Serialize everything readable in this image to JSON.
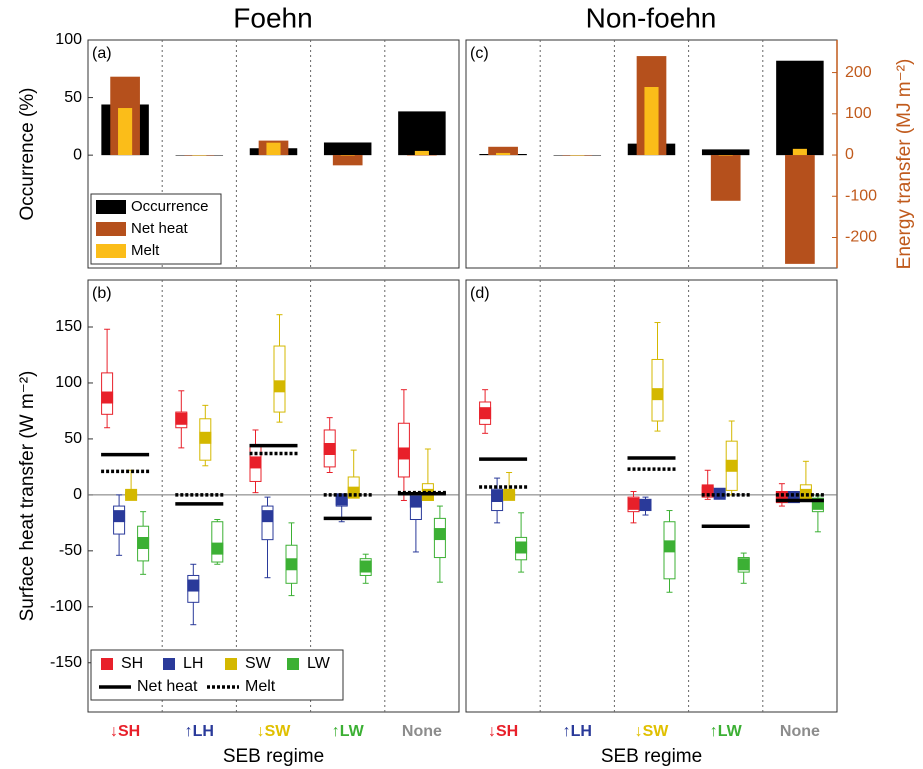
{
  "titles": [
    "Foehn",
    "Non-foehn"
  ],
  "chart_data": [
    {
      "type": "bar",
      "panel_label": "(a)",
      "y_label": "Occurrence (%)",
      "ylim": [
        -98,
        100
      ],
      "yticks": [
        0,
        50,
        100
      ],
      "y2lim": [
        -274,
        279
      ],
      "legend": "lower left",
      "series": [
        {
          "name": "Occurrence",
          "color": "#000000",
          "values": [
            44,
            0,
            6,
            11,
            38
          ]
        },
        {
          "name": "Net heat",
          "color": "#b5501c",
          "axis": "y2",
          "values": [
            190,
            0,
            35,
            -25,
            0
          ]
        },
        {
          "name": "Melt",
          "color": "#fbbd19",
          "axis": "y2",
          "values": [
            114,
            0,
            30,
            0,
            10
          ]
        }
      ]
    },
    {
      "type": "bar",
      "panel_label": "(c)",
      "y2_label": "Energy transfer (MJ m⁻²)",
      "axis_color": "#c05a1c",
      "ylim": [
        -98,
        100
      ],
      "y2lim": [
        -274,
        279
      ],
      "y2ticks": [
        -200,
        -100,
        0,
        100,
        200
      ],
      "series": [
        {
          "color": "#000000",
          "values": [
            1,
            0,
            10,
            5,
            82
          ]
        },
        {
          "color": "#b5501c",
          "axis": "y2",
          "values": [
            20,
            0,
            240,
            -111,
            -264
          ]
        },
        {
          "color": "#fbbd19",
          "axis": "y2",
          "values": [
            5,
            0,
            165,
            0,
            15
          ]
        }
      ]
    },
    {
      "type": "box",
      "panel_label": "(b)",
      "y_label": "Surface heat transfer (W m⁻²)",
      "x_label": "SEB regime",
      "categories": [
        "↓SH",
        "↑LH",
        "↓SW",
        "↑LW",
        "None"
      ],
      "category_colors": [
        "#e8202a",
        "#2a3a9a",
        "#e0c000",
        "#3cb034",
        "#8c8c8c"
      ],
      "ylim": [
        -194,
        192
      ],
      "yticks": [
        -150,
        -100,
        -50,
        0,
        50,
        100,
        150
      ],
      "legend": "lower left",
      "series": [
        {
          "name": "SH",
          "color": "#e8202a",
          "values": [
            [
              60,
              72,
              87,
              109,
              148
            ],
            [
              42,
              60,
              68,
              74,
              93
            ],
            [
              2,
              12,
              29,
              45,
              58
            ],
            [
              20,
              25,
              41,
              58,
              69
            ],
            [
              -5,
              16,
              37,
              64,
              94
            ]
          ]
        },
        {
          "name": "LH",
          "color": "#2a3a9a",
          "values": [
            [
              -54,
              -35,
              -19,
              -10,
              0
            ],
            [
              -116,
              -96,
              -81,
              -72,
              -62
            ],
            [
              -74,
              -40,
              -19,
              -10,
              -2
            ],
            [
              -24,
              -10,
              -4,
              0,
              0
            ],
            [
              -51,
              -22,
              -6,
              0,
              0
            ]
          ]
        },
        {
          "name": "SW",
          "color": "#d4b800",
          "values": [
            [
              -2,
              -2,
              0,
              2,
              22
            ],
            [
              26,
              31,
              51,
              68,
              80
            ],
            [
              65,
              74,
              97,
              133,
              161
            ],
            [
              -2,
              0,
              2,
              16,
              40
            ],
            [
              -5,
              -5,
              0,
              10,
              41
            ]
          ]
        },
        {
          "name": "LW",
          "color": "#3cb034",
          "values": [
            [
              -71,
              -59,
              -43,
              -28,
              -15
            ],
            [
              -62,
              -60,
              -48,
              -24,
              -22
            ],
            [
              -90,
              -79,
              -62,
              -45,
              -25
            ],
            [
              -79,
              -72,
              -64,
              -57,
              -53
            ],
            [
              -78,
              -56,
              -35,
              -21,
              -10
            ]
          ]
        },
        {
          "name": "Net heat",
          "color": "#000000",
          "style": "solid",
          "values": [
            36,
            -8,
            44,
            -21,
            1
          ]
        },
        {
          "name": "Melt",
          "color": "#000000",
          "style": "dotted",
          "values": [
            21,
            0,
            37,
            0,
            2
          ]
        }
      ]
    },
    {
      "type": "box",
      "panel_label": "(d)",
      "x_label": "SEB regime",
      "categories": [
        "↓SH",
        "↑LH",
        "↓SW",
        "↑LW",
        "None"
      ],
      "category_colors": [
        "#e8202a",
        "#2a3a9a",
        "#e0c000",
        "#3cb034",
        "#8c8c8c"
      ],
      "ylim": [
        -194,
        192
      ],
      "series": [
        {
          "color": "#e8202a",
          "values": [
            [
              55,
              63,
              73,
              83,
              94
            ],
            null,
            [
              -25,
              -15,
              -8,
              -2,
              3
            ],
            [
              -4,
              -2,
              4,
              7,
              22
            ],
            [
              -10,
              -6,
              -2,
              3,
              10
            ]
          ]
        },
        {
          "color": "#2a3a9a",
          "values": [
            [
              -25,
              -14,
              -1,
              5,
              15
            ],
            null,
            [
              -18,
              -14,
              -9,
              -4,
              -2
            ],
            [
              -3,
              -2,
              1,
              1,
              2
            ],
            [
              -5,
              -5,
              -2,
              3,
              3
            ]
          ]
        },
        {
          "color": "#d4b800",
          "values": [
            [
              -2,
              -2,
              0,
              2,
              20
            ],
            null,
            [
              57,
              66,
              90,
              121,
              154
            ],
            [
              0,
              4,
              26,
              48,
              66
            ],
            [
              -5,
              -5,
              0,
              9,
              30
            ]
          ]
        },
        {
          "color": "#3cb034",
          "values": [
            [
              -69,
              -58,
              -47,
              -38,
              -16
            ],
            null,
            [
              -87,
              -75,
              -46,
              -24,
              -14
            ],
            [
              -79,
              -69,
              -62,
              -56,
              -52
            ],
            [
              -33,
              -15,
              -8,
              -3,
              -1
            ]
          ]
        },
        {
          "color": "#000000",
          "style": "solid",
          "values": [
            32,
            null,
            33,
            -28,
            -5
          ]
        },
        {
          "color": "#000000",
          "style": "dotted",
          "values": [
            7,
            null,
            23,
            0,
            0
          ]
        }
      ]
    }
  ]
}
